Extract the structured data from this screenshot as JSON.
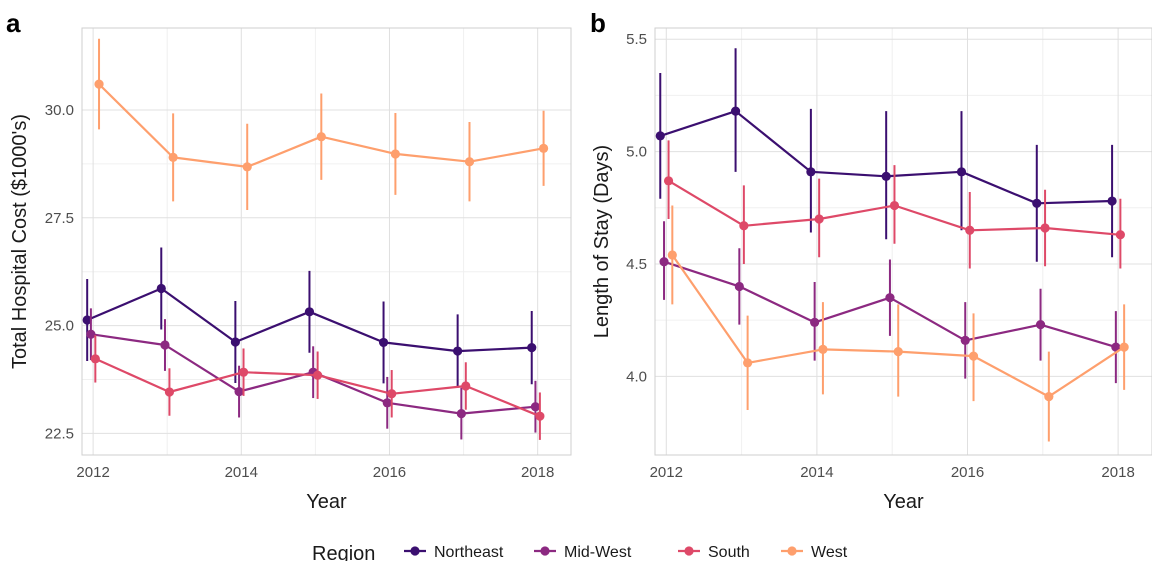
{
  "colors": {
    "Northeast": "#3b0f70",
    "Mid-West": "#8c2981",
    "South": "#de4968",
    "West": "#fe9f6d",
    "grid_major": "#e0e0e0",
    "grid_minor": "#f0f0f0",
    "panel_border": "#cfcfcf"
  },
  "legend": {
    "title": "Region",
    "items": [
      "Northeast",
      "Mid-West",
      "South",
      "West"
    ]
  },
  "chart_data": [
    {
      "type": "line",
      "panel_label": "a",
      "xlabel": "Year",
      "ylabel": "Total Hospital Cost ($1000's)",
      "xlim": [
        2011.85,
        2018.45
      ],
      "ylim": [
        22.0,
        31.9
      ],
      "x_ticks": [
        2012,
        2014,
        2016,
        2018
      ],
      "y_ticks": [
        22.5,
        25.0,
        27.5,
        30.0
      ],
      "y_tick_labels": [
        "22.5",
        "25.0",
        "27.5",
        "30.0"
      ],
      "grid": true,
      "legend_position": "bottom",
      "series": [
        {
          "name": "Northeast",
          "x": [
            2011.92,
            2012.92,
            2013.92,
            2014.92,
            2015.92,
            2016.92,
            2017.92
          ],
          "y": [
            25.13,
            25.86,
            24.62,
            25.32,
            24.61,
            24.41,
            24.49
          ],
          "lo": [
            24.18,
            24.91,
            23.67,
            24.37,
            23.66,
            23.56,
            23.64
          ],
          "hi": [
            26.08,
            26.81,
            25.57,
            26.27,
            25.56,
            25.26,
            25.34
          ]
        },
        {
          "name": "Mid-West",
          "x": [
            2011.97,
            2012.97,
            2013.97,
            2014.97,
            2015.97,
            2016.97,
            2017.97
          ],
          "y": [
            24.8,
            24.55,
            23.47,
            23.92,
            23.21,
            22.96,
            23.12
          ],
          "lo": [
            24.2,
            23.95,
            22.87,
            23.32,
            22.61,
            22.36,
            22.52
          ],
          "hi": [
            25.4,
            25.15,
            24.07,
            24.52,
            23.81,
            23.56,
            23.72
          ]
        },
        {
          "name": "South",
          "x": [
            2012.03,
            2013.03,
            2014.03,
            2015.03,
            2016.03,
            2017.03,
            2018.03
          ],
          "y": [
            24.23,
            23.46,
            23.92,
            23.85,
            23.42,
            23.6,
            22.9
          ],
          "lo": [
            23.68,
            22.91,
            23.37,
            23.3,
            22.87,
            23.05,
            22.35
          ],
          "hi": [
            24.78,
            24.01,
            24.47,
            24.4,
            23.97,
            24.15,
            23.45
          ]
        },
        {
          "name": "West",
          "x": [
            2012.08,
            2013.08,
            2014.08,
            2015.08,
            2016.08,
            2017.08,
            2018.08
          ],
          "y": [
            30.6,
            28.9,
            28.68,
            29.38,
            28.98,
            28.8,
            29.11
          ],
          "lo": [
            29.55,
            27.88,
            27.68,
            28.38,
            28.03,
            27.88,
            28.24
          ],
          "hi": [
            31.65,
            29.92,
            29.68,
            30.38,
            29.93,
            29.72,
            29.98
          ]
        }
      ]
    },
    {
      "type": "line",
      "panel_label": "b",
      "xlabel": "Year",
      "ylabel": "Length of Stay (Days)",
      "xlim": [
        2011.85,
        2018.45
      ],
      "ylim": [
        3.65,
        5.55
      ],
      "x_ticks": [
        2012,
        2014,
        2016,
        2018
      ],
      "y_ticks": [
        4.0,
        4.5,
        5.0,
        5.5
      ],
      "y_tick_labels": [
        "4.0",
        "4.5",
        "5.0",
        "5.5"
      ],
      "grid": true,
      "legend_position": "bottom",
      "series": [
        {
          "name": "Northeast",
          "x": [
            2011.92,
            2012.92,
            2013.92,
            2014.92,
            2015.92,
            2016.92,
            2017.92
          ],
          "y": [
            5.07,
            5.18,
            4.91,
            4.89,
            4.91,
            4.77,
            4.78
          ],
          "lo": [
            4.79,
            4.91,
            4.64,
            4.61,
            4.65,
            4.51,
            4.53
          ],
          "hi": [
            5.35,
            5.46,
            5.19,
            5.18,
            5.18,
            5.03,
            5.03
          ]
        },
        {
          "name": "Mid-West",
          "x": [
            2011.97,
            2012.97,
            2013.97,
            2014.97,
            2015.97,
            2016.97,
            2017.97
          ],
          "y": [
            4.51,
            4.4,
            4.24,
            4.35,
            4.16,
            4.23,
            4.13
          ],
          "lo": [
            4.34,
            4.23,
            4.07,
            4.18,
            3.99,
            4.07,
            3.97
          ],
          "hi": [
            4.69,
            4.57,
            4.42,
            4.52,
            4.33,
            4.39,
            4.29
          ]
        },
        {
          "name": "South",
          "x": [
            2012.03,
            2013.03,
            2014.03,
            2015.03,
            2016.03,
            2017.03,
            2018.03
          ],
          "y": [
            4.87,
            4.67,
            4.7,
            4.76,
            4.65,
            4.66,
            4.63
          ],
          "lo": [
            4.7,
            4.5,
            4.53,
            4.59,
            4.48,
            4.49,
            4.48
          ],
          "hi": [
            5.05,
            4.85,
            4.88,
            4.94,
            4.82,
            4.83,
            4.79
          ]
        },
        {
          "name": "West",
          "x": [
            2012.08,
            2013.08,
            2014.08,
            2015.08,
            2016.08,
            2017.08,
            2018.08
          ],
          "y": [
            4.54,
            4.06,
            4.12,
            4.11,
            4.09,
            3.91,
            4.13
          ],
          "lo": [
            4.32,
            3.85,
            3.92,
            3.91,
            3.89,
            3.71,
            3.94
          ],
          "hi": [
            4.76,
            4.27,
            4.33,
            4.32,
            4.28,
            4.11,
            4.32
          ]
        }
      ]
    }
  ]
}
